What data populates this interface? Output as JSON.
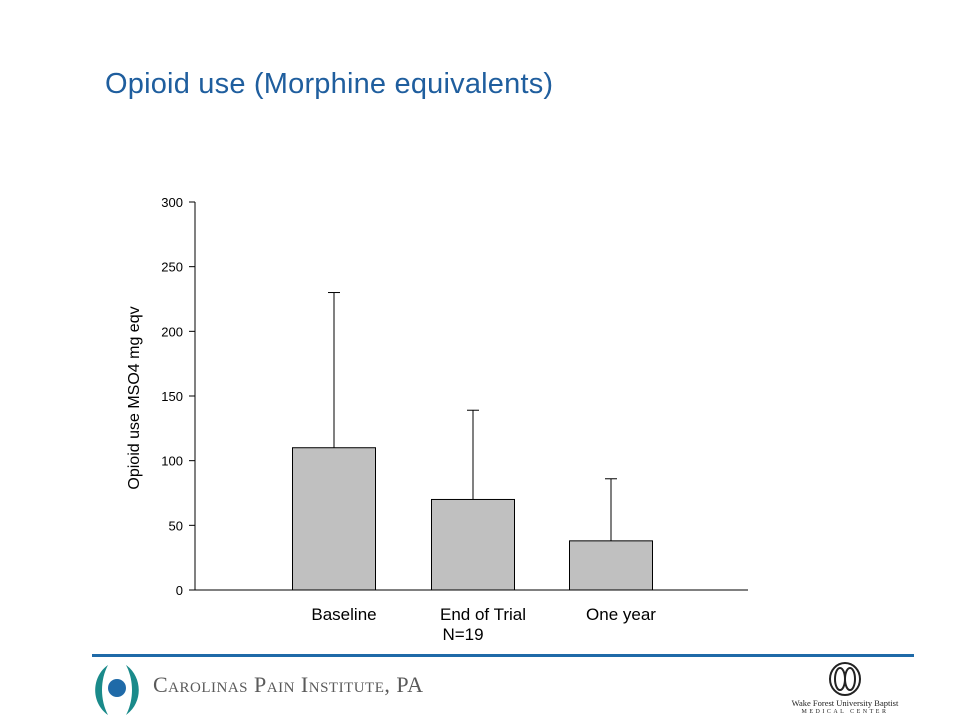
{
  "slide": {
    "title": "Opioid use (Morphine equivalents)"
  },
  "chart_data": {
    "type": "bar",
    "categories": [
      "Baseline",
      "End of Trial",
      "One year"
    ],
    "values": [
      110,
      70,
      38
    ],
    "error_upper": [
      230,
      139,
      86
    ],
    "xlabel_note": "N=19",
    "ylabel": "Opioid use MSO4 mg eqv",
    "ylim": [
      0,
      300
    ],
    "yticks": [
      0,
      50,
      100,
      150,
      200,
      250,
      300
    ],
    "grid": false,
    "legend": "none",
    "bar_color": "#c0c0c0",
    "bar_edge_color": "#000000"
  },
  "footer": {
    "left_logo_text": "Carolinas Pain Institute, PA",
    "right_logo_line1": "Wake Forest University Baptist",
    "right_logo_line2": "MEDICAL CENTER",
    "accent_color": "#1f6aa8",
    "logo_color": "#1a8a8a"
  }
}
